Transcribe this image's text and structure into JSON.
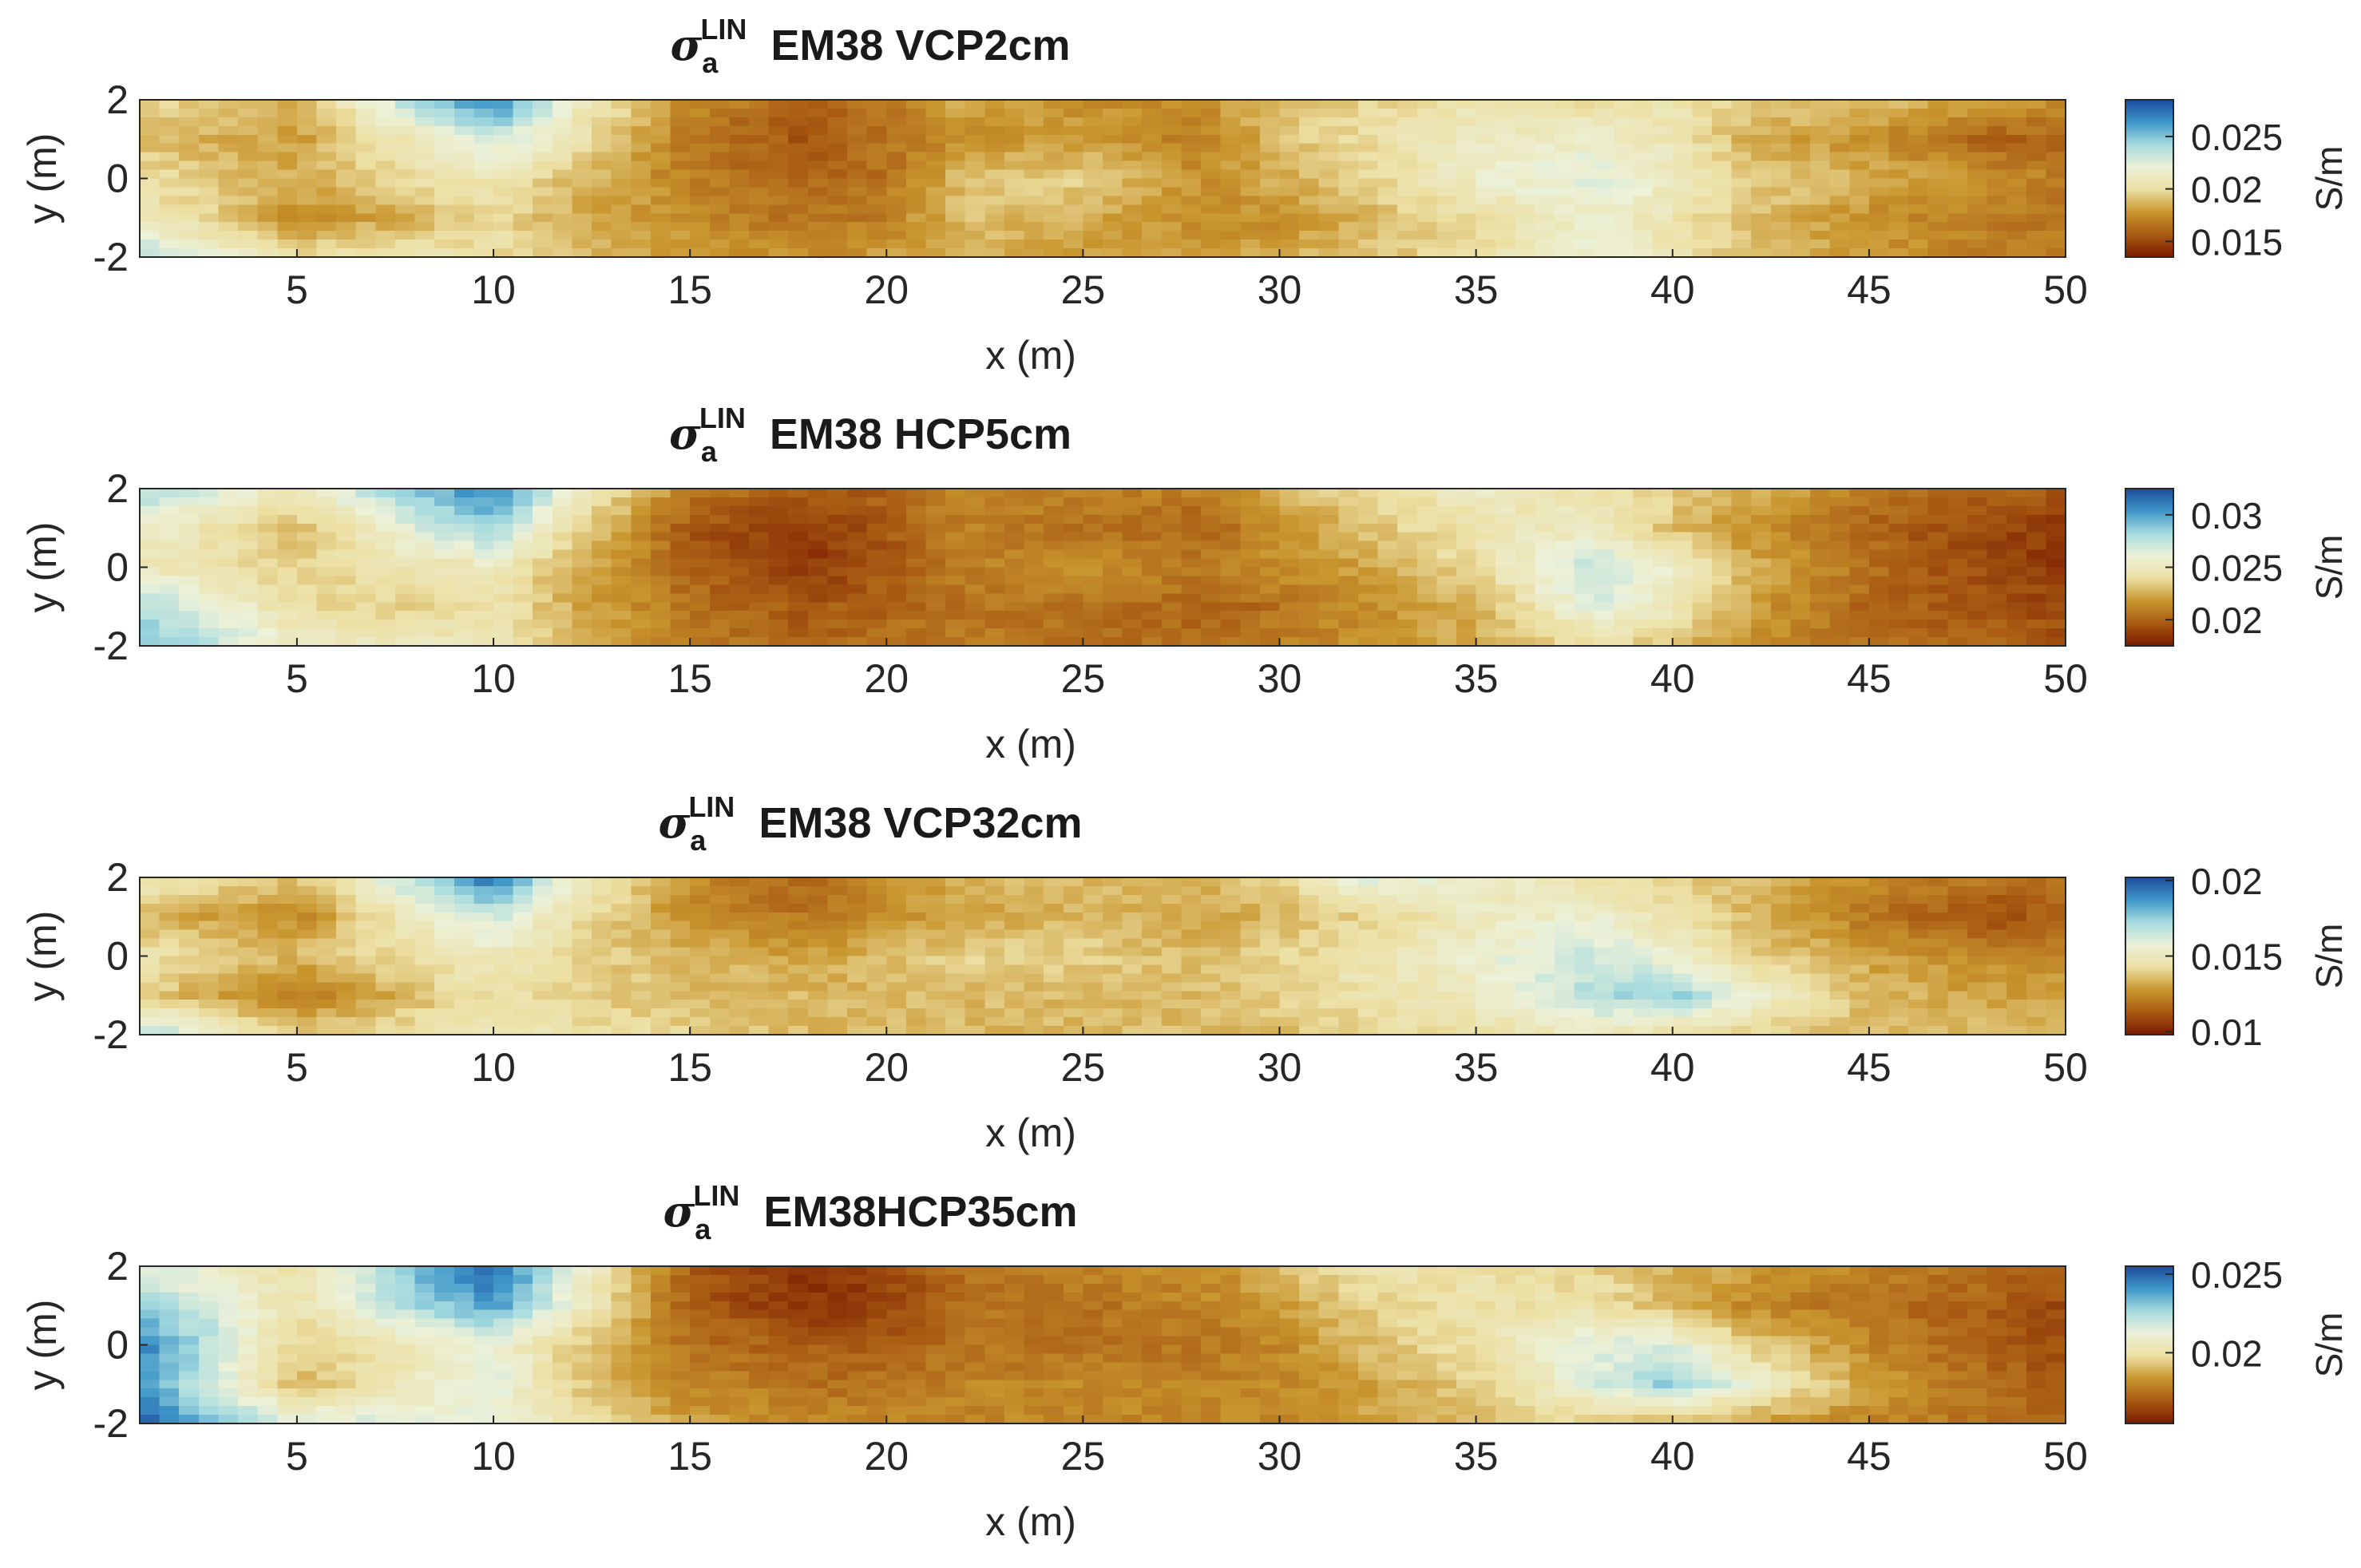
{
  "colormap": [
    "#7a1a00",
    "#a85a12",
    "#c9962e",
    "#ecdfa2",
    "#ecf1d8",
    "#a6dbdf",
    "#3f97c9",
    "#1c4b9c"
  ],
  "chart_data": [
    {
      "type": "heatmap",
      "title_symbol": "σ",
      "title_sub": "a",
      "title_sup": "LIN",
      "title_text": "EM38  VCP2cm",
      "xlabel": "x (m)",
      "ylabel": "y (m)",
      "xlim": [
        1,
        50
      ],
      "ylim": [
        -2,
        2
      ],
      "xticks": [
        "5",
        "10",
        "15",
        "20",
        "25",
        "30",
        "35",
        "40",
        "45",
        "50"
      ],
      "yticks": [
        "2",
        "0",
        "-2"
      ],
      "colorbar_label": "S/m",
      "clim": [
        0.0135,
        0.0285
      ],
      "colorbar_ticks": [
        "0.025",
        "0.02",
        "0.015"
      ],
      "colorbar_tick_values": [
        0.025,
        0.02,
        0.015
      ],
      "x": [
        1,
        5,
        8,
        10,
        12,
        15,
        18,
        20,
        22,
        25,
        28,
        30,
        32,
        35,
        38,
        40,
        42,
        45,
        48,
        50
      ],
      "y": [
        2,
        1,
        0,
        -1,
        -2
      ],
      "z": [
        [
          0.02,
          0.0185,
          0.024,
          0.027,
          0.0215,
          0.0175,
          0.016,
          0.0165,
          0.0185,
          0.0175,
          0.0175,
          0.019,
          0.0195,
          0.0205,
          0.02,
          0.0205,
          0.0195,
          0.019,
          0.018,
          0.0175
        ],
        [
          0.019,
          0.018,
          0.021,
          0.023,
          0.0205,
          0.0165,
          0.0155,
          0.0165,
          0.0175,
          0.018,
          0.017,
          0.019,
          0.02,
          0.021,
          0.0215,
          0.0205,
          0.0185,
          0.0175,
          0.016,
          0.016
        ],
        [
          0.02,
          0.0185,
          0.02,
          0.0205,
          0.019,
          0.017,
          0.016,
          0.0165,
          0.019,
          0.0195,
          0.0175,
          0.0185,
          0.0195,
          0.0215,
          0.0225,
          0.0215,
          0.0195,
          0.0185,
          0.0175,
          0.017
        ],
        [
          0.021,
          0.0175,
          0.0185,
          0.02,
          0.0185,
          0.0175,
          0.0165,
          0.017,
          0.019,
          0.0185,
          0.0175,
          0.0175,
          0.0185,
          0.02,
          0.0215,
          0.0205,
          0.019,
          0.0175,
          0.017,
          0.0165
        ],
        [
          0.0235,
          0.02,
          0.0205,
          0.02,
          0.019,
          0.018,
          0.0175,
          0.018,
          0.0185,
          0.018,
          0.018,
          0.0185,
          0.019,
          0.02,
          0.022,
          0.0205,
          0.019,
          0.018,
          0.017,
          0.017
        ]
      ]
    },
    {
      "type": "heatmap",
      "title_symbol": "σ",
      "title_sub": "a",
      "title_sup": "LIN",
      "title_text": "EM38  HCP5cm",
      "xlabel": "x (m)",
      "ylabel": "y (m)",
      "xlim": [
        1,
        50
      ],
      "ylim": [
        -2,
        2
      ],
      "xticks": [
        "5",
        "10",
        "15",
        "20",
        "25",
        "30",
        "35",
        "40",
        "45",
        "50"
      ],
      "yticks": [
        "2",
        "0",
        "-2"
      ],
      "colorbar_label": "S/m",
      "clim": [
        0.0175,
        0.0325
      ],
      "colorbar_ticks": [
        "0.03",
        "0.025",
        "0.02"
      ],
      "colorbar_tick_values": [
        0.03,
        0.025,
        0.02
      ],
      "x": [
        1,
        5,
        8,
        10,
        12,
        15,
        18,
        20,
        22,
        25,
        28,
        30,
        32,
        35,
        38,
        40,
        42,
        45,
        48,
        50
      ],
      "y": [
        2,
        1,
        0,
        -1,
        -2
      ],
      "z": [
        [
          0.028,
          0.025,
          0.029,
          0.031,
          0.0255,
          0.021,
          0.0195,
          0.02,
          0.0215,
          0.021,
          0.021,
          0.0225,
          0.024,
          0.025,
          0.0245,
          0.0235,
          0.0225,
          0.021,
          0.02,
          0.0195
        ],
        [
          0.0255,
          0.023,
          0.0265,
          0.0285,
          0.024,
          0.0195,
          0.0185,
          0.0195,
          0.021,
          0.0205,
          0.02,
          0.0215,
          0.023,
          0.0245,
          0.025,
          0.023,
          0.0215,
          0.02,
          0.019,
          0.0185
        ],
        [
          0.025,
          0.0235,
          0.0245,
          0.025,
          0.0225,
          0.02,
          0.0185,
          0.0195,
          0.021,
          0.0215,
          0.021,
          0.0215,
          0.022,
          0.024,
          0.0275,
          0.0255,
          0.0225,
          0.0205,
          0.019,
          0.0185
        ],
        [
          0.028,
          0.024,
          0.0235,
          0.0245,
          0.0225,
          0.0205,
          0.0195,
          0.02,
          0.0205,
          0.0205,
          0.02,
          0.0205,
          0.0215,
          0.0225,
          0.0265,
          0.025,
          0.022,
          0.02,
          0.0195,
          0.019
        ],
        [
          0.029,
          0.0255,
          0.025,
          0.0245,
          0.023,
          0.021,
          0.02,
          0.0205,
          0.021,
          0.0205,
          0.0205,
          0.021,
          0.0215,
          0.0225,
          0.024,
          0.023,
          0.0215,
          0.0205,
          0.02,
          0.0195
        ]
      ]
    },
    {
      "type": "heatmap",
      "title_symbol": "σ",
      "title_sub": "a",
      "title_sup": "LIN",
      "title_text": "EM38  VCP32cm",
      "xlabel": "x (m)",
      "ylabel": "y (m)",
      "xlim": [
        1,
        50
      ],
      "ylim": [
        -2,
        2
      ],
      "xticks": [
        "5",
        "10",
        "15",
        "20",
        "25",
        "30",
        "35",
        "40",
        "45",
        "50"
      ],
      "yticks": [
        "2",
        "0",
        "-2"
      ],
      "colorbar_label": "S/m",
      "clim": [
        0.0098,
        0.0202
      ],
      "colorbar_ticks": [
        "0.02",
        "0.015",
        "0.01"
      ],
      "colorbar_tick_values": [
        0.02,
        0.015,
        0.01
      ],
      "x": [
        1,
        5,
        8,
        10,
        12,
        15,
        18,
        20,
        22,
        25,
        28,
        30,
        32,
        35,
        38,
        40,
        42,
        45,
        48,
        50
      ],
      "y": [
        2,
        1,
        0,
        -1,
        -2
      ],
      "z": [
        [
          0.015,
          0.0135,
          0.017,
          0.0195,
          0.0155,
          0.0125,
          0.0115,
          0.0125,
          0.0135,
          0.0135,
          0.0135,
          0.014,
          0.016,
          0.0155,
          0.0145,
          0.014,
          0.0135,
          0.0125,
          0.012,
          0.012
        ],
        [
          0.0135,
          0.0125,
          0.015,
          0.0165,
          0.0145,
          0.0125,
          0.012,
          0.0125,
          0.013,
          0.0135,
          0.013,
          0.0135,
          0.014,
          0.015,
          0.0155,
          0.0145,
          0.0135,
          0.012,
          0.011,
          0.0115
        ],
        [
          0.0145,
          0.0135,
          0.0145,
          0.015,
          0.014,
          0.0135,
          0.013,
          0.0135,
          0.014,
          0.014,
          0.0135,
          0.014,
          0.0145,
          0.0155,
          0.0165,
          0.0155,
          0.014,
          0.013,
          0.0125,
          0.0125
        ],
        [
          0.014,
          0.012,
          0.0135,
          0.0145,
          0.014,
          0.0135,
          0.0135,
          0.0135,
          0.0135,
          0.0135,
          0.0135,
          0.014,
          0.0145,
          0.015,
          0.017,
          0.0175,
          0.0155,
          0.0135,
          0.013,
          0.013
        ],
        [
          0.017,
          0.014,
          0.0145,
          0.015,
          0.0145,
          0.014,
          0.0135,
          0.0135,
          0.0135,
          0.0135,
          0.0135,
          0.0135,
          0.014,
          0.0145,
          0.015,
          0.0145,
          0.014,
          0.0135,
          0.0135,
          0.0135
        ]
      ]
    },
    {
      "type": "heatmap",
      "title_symbol": "σ",
      "title_sub": "a",
      "title_sup": "LIN",
      "title_text": "EM38HCP35cm",
      "xlabel": "x (m)",
      "ylabel": "y (m)",
      "xlim": [
        1,
        50
      ],
      "ylim": [
        -2,
        2
      ],
      "xticks": [
        "5",
        "10",
        "15",
        "20",
        "25",
        "30",
        "35",
        "40",
        "45",
        "50"
      ],
      "yticks": [
        "2",
        "0",
        "-2"
      ],
      "colorbar_label": "S/m",
      "clim": [
        0.0155,
        0.0255
      ],
      "colorbar_ticks": [
        "0.025",
        "0.02"
      ],
      "colorbar_tick_values": [
        0.025,
        0.02
      ],
      "x": [
        1,
        5,
        8,
        10,
        12,
        15,
        18,
        20,
        22,
        25,
        28,
        30,
        32,
        35,
        38,
        40,
        42,
        45,
        48,
        50
      ],
      "y": [
        2,
        1,
        0,
        -1,
        -2
      ],
      "z": [
        [
          0.0215,
          0.02,
          0.0235,
          0.025,
          0.0215,
          0.017,
          0.016,
          0.0165,
          0.0175,
          0.018,
          0.018,
          0.019,
          0.02,
          0.02,
          0.0195,
          0.019,
          0.0185,
          0.018,
          0.0175,
          0.017
        ],
        [
          0.023,
          0.02,
          0.0225,
          0.024,
          0.021,
          0.017,
          0.016,
          0.0165,
          0.0175,
          0.0175,
          0.018,
          0.0185,
          0.0195,
          0.02,
          0.02,
          0.019,
          0.018,
          0.0175,
          0.017,
          0.0165
        ],
        [
          0.0245,
          0.0195,
          0.0205,
          0.021,
          0.0195,
          0.0175,
          0.017,
          0.017,
          0.0175,
          0.0175,
          0.0175,
          0.018,
          0.019,
          0.02,
          0.0215,
          0.0215,
          0.0195,
          0.018,
          0.017,
          0.0165
        ],
        [
          0.024,
          0.019,
          0.0205,
          0.0215,
          0.0195,
          0.018,
          0.0175,
          0.0175,
          0.018,
          0.018,
          0.018,
          0.018,
          0.0185,
          0.0195,
          0.0215,
          0.023,
          0.021,
          0.0185,
          0.0175,
          0.017
        ],
        [
          0.025,
          0.0215,
          0.0215,
          0.021,
          0.02,
          0.0185,
          0.018,
          0.018,
          0.018,
          0.018,
          0.018,
          0.018,
          0.0185,
          0.019,
          0.0195,
          0.019,
          0.0185,
          0.018,
          0.0175,
          0.017
        ]
      ]
    }
  ]
}
